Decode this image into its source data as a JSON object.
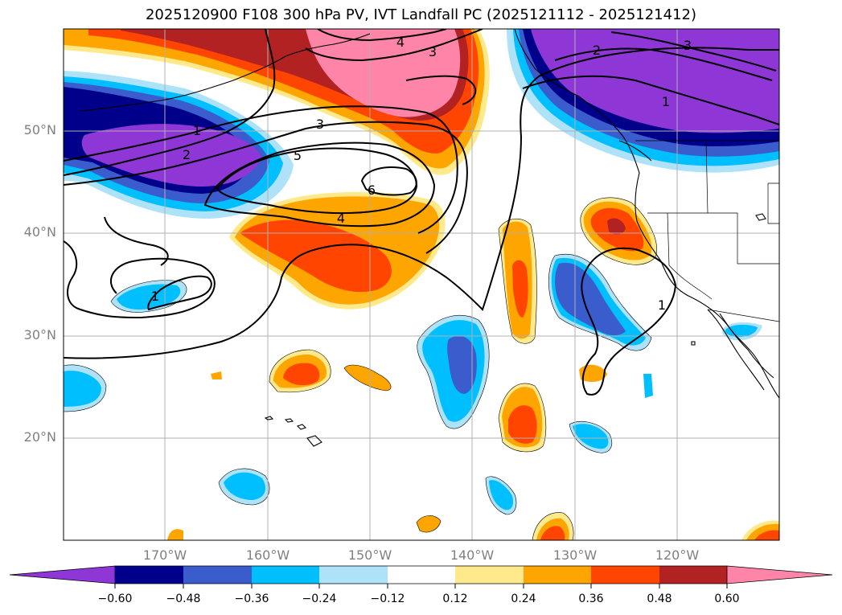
{
  "title": "2025120900 F108 300 hPa PV, IVT Landfall PC (2025121112 - 2025121412)",
  "lat_labels": [
    "50°N",
    "40°N",
    "30°N",
    "20°N"
  ],
  "lon_labels": [
    "170°W",
    "160°W",
    "150°W",
    "140°W",
    "130°W",
    "120°W"
  ],
  "contour_labels": [
    "4",
    "3",
    "2",
    "3",
    "1",
    "1",
    "2",
    "3",
    "5",
    "6",
    "4",
    "1",
    "1"
  ],
  "colorbar": {
    "tick_labels": [
      "−0.60",
      "−0.48",
      "−0.36",
      "−0.24",
      "−0.12",
      "0.12",
      "0.24",
      "0.36",
      "0.48",
      "0.60"
    ],
    "colors": [
      "#8e36d6",
      "#00008b",
      "#3a5ccc",
      "#00bfff",
      "#aee2f8",
      "#ffffff",
      "#ffe98a",
      "#ffa500",
      "#ff4500",
      "#b22222",
      "#ff85a8"
    ]
  },
  "colors": {
    "purple": "#8e36d6",
    "navy": "#00008b",
    "blue": "#3a5ccc",
    "cyan": "#00bfff",
    "lightblue": "#aee2f8",
    "yellow": "#ffe98a",
    "orange": "#ffa500",
    "red": "#ff4500",
    "firebrick": "#b22222",
    "pink": "#ff85a8",
    "grid": "#b0b0b0",
    "tick_text": "#808080"
  }
}
